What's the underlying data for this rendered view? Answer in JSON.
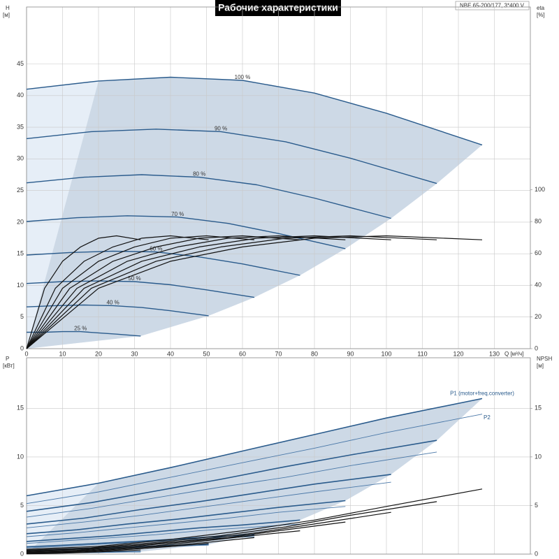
{
  "chart_data": [
    {
      "type": "line",
      "title": "Рабочие характеристики",
      "annotation": "NBE 65-200/177, 3*400 V",
      "ylabel": "H",
      "yunit": "[м]",
      "y2label": "eta",
      "y2unit": "[%]",
      "xlabel": "Q [м³/ч]",
      "xlim": [
        0,
        140
      ],
      "ylim": [
        0,
        54
      ],
      "y2lim": [
        0,
        215
      ],
      "xticks": [
        0,
        10,
        20,
        30,
        40,
        50,
        60,
        70,
        80,
        90,
        100,
        110,
        120,
        130
      ],
      "xtick_labels": true,
      "yticks": [
        0,
        5,
        10,
        15,
        20,
        25,
        30,
        35,
        40,
        45
      ],
      "y2ticks": [
        0,
        20,
        40,
        60,
        80,
        100
      ],
      "grid": true,
      "area_color": "#cdd9e6",
      "area_light_color": "#e6eef7",
      "series": [
        {
          "name": "100 %",
          "color": "#2a5b8c",
          "line_width": 1.4,
          "x": [
            0,
            20,
            40,
            60,
            80,
            100,
            126.6
          ],
          "values": [
            41,
            42.3,
            42.9,
            42.4,
            40.4,
            37.2,
            32.2
          ]
        },
        {
          "name": "90 %",
          "color": "#2a5b8c",
          "line_width": 1.4,
          "x": [
            0,
            18,
            36,
            54,
            72,
            90,
            114
          ],
          "values": [
            33.2,
            34.3,
            34.7,
            34.3,
            32.7,
            30.1,
            26.1
          ]
        },
        {
          "name": "80 %",
          "color": "#2a5b8c",
          "line_width": 1.4,
          "x": [
            0,
            16,
            32,
            48,
            64,
            80,
            101.3
          ],
          "values": [
            26.2,
            27.1,
            27.5,
            27.1,
            25.9,
            23.8,
            20.6
          ]
        },
        {
          "name": "70 %",
          "color": "#2a5b8c",
          "line_width": 1.4,
          "x": [
            0,
            14,
            28,
            42,
            56,
            70,
            88.6
          ],
          "values": [
            20.1,
            20.7,
            21.0,
            20.8,
            19.8,
            18.2,
            15.8
          ]
        },
        {
          "name": "60 %",
          "color": "#2a5b8c",
          "line_width": 1.4,
          "x": [
            0,
            12,
            24,
            36,
            48,
            60,
            76
          ],
          "values": [
            14.8,
            15.2,
            15.4,
            15.3,
            14.5,
            13.4,
            11.6
          ]
        },
        {
          "name": "50 %",
          "color": "#2a5b8c",
          "line_width": 1.4,
          "x": [
            0,
            10,
            20,
            30,
            40,
            50,
            63.3
          ],
          "values": [
            10.3,
            10.6,
            10.7,
            10.6,
            10.1,
            9.3,
            8.1
          ]
        },
        {
          "name": "40 %",
          "color": "#2a5b8c",
          "line_width": 1.4,
          "x": [
            0,
            8,
            16,
            24,
            32,
            40,
            50.6
          ],
          "values": [
            6.6,
            6.8,
            6.9,
            6.8,
            6.5,
            6.0,
            5.2
          ]
        },
        {
          "name": "25 %",
          "color": "#2a5b8c",
          "line_width": 1.4,
          "x": [
            0,
            5,
            10,
            15,
            20,
            25,
            31.7
          ],
          "values": [
            2.6,
            2.6,
            2.7,
            2.7,
            2.5,
            2.3,
            2.0
          ]
        },
        {
          "axis": "y2",
          "color": "#111111",
          "line_width": 1.2,
          "x": [
            0,
            20,
            40,
            60,
            80,
            100,
            126.6
          ],
          "values": [
            0,
            38,
            55,
            64,
            69.5,
            71,
            68.5
          ]
        },
        {
          "axis": "y2",
          "color": "#111111",
          "line_width": 1.2,
          "x": [
            0,
            18,
            36,
            54,
            72,
            90,
            114
          ],
          "values": [
            0,
            38,
            55,
            64,
            69.5,
            71,
            68.5
          ]
        },
        {
          "axis": "y2",
          "color": "#111111",
          "line_width": 1.2,
          "x": [
            0,
            16,
            32,
            48,
            64,
            80,
            101.3
          ],
          "values": [
            0,
            38,
            55,
            64,
            69.5,
            71,
            68.5
          ]
        },
        {
          "axis": "y2",
          "color": "#111111",
          "line_width": 1.2,
          "x": [
            0,
            14,
            28,
            42,
            56,
            70,
            88.6
          ],
          "values": [
            0,
            38,
            55,
            64,
            69.5,
            71,
            68.5
          ]
        },
        {
          "axis": "y2",
          "color": "#111111",
          "line_width": 1.2,
          "x": [
            0,
            12,
            24,
            36,
            48,
            60,
            76
          ],
          "values": [
            0,
            38,
            55,
            64,
            69.5,
            71,
            68.5
          ]
        },
        {
          "axis": "y2",
          "color": "#111111",
          "line_width": 1.2,
          "x": [
            0,
            10,
            20,
            30,
            40,
            50,
            63.3
          ],
          "values": [
            0,
            38,
            55,
            64,
            69.5,
            71,
            68.5
          ]
        },
        {
          "axis": "y2",
          "color": "#111111",
          "line_width": 1.2,
          "x": [
            0,
            8,
            16,
            24,
            32,
            40,
            50.6
          ],
          "values": [
            0,
            38,
            55,
            64,
            69.5,
            71,
            68.5
          ]
        },
        {
          "axis": "y2",
          "color": "#111111",
          "line_width": 1.2,
          "x": [
            0,
            5,
            10,
            15,
            20,
            25,
            31.7
          ],
          "values": [
            0,
            38,
            55,
            64,
            69.5,
            71,
            68.5
          ]
        }
      ]
    },
    {
      "type": "line",
      "ylabel": "P",
      "yunit": "[кВт]",
      "y2label": "NPSH",
      "y2unit": "[м]",
      "xlim": [
        0,
        140
      ],
      "ylim": [
        0,
        20.2
      ],
      "y2lim": [
        0,
        20.2
      ],
      "xticks": [
        0,
        10,
        20,
        30,
        40,
        50,
        60,
        70,
        80,
        90,
        100,
        110,
        120,
        130
      ],
      "xtick_labels": false,
      "yticks": [
        0,
        5,
        10,
        15
      ],
      "y2ticks": [
        0,
        5,
        10,
        15
      ],
      "grid": true,
      "area_color": "#cdd9e6",
      "area_light_color": "#e6eef7",
      "series": [
        {
          "name": "P1 (motor+freq.converter)",
          "color": "#2a5b8c",
          "line_width": 1.6,
          "x": [
            0,
            20,
            40,
            60,
            80,
            100,
            126.6
          ],
          "values": [
            6.0,
            7.3,
            8.9,
            10.6,
            12.3,
            14.0,
            16.0
          ]
        },
        {
          "color": "#2a5b8c",
          "line_width": 1.6,
          "x": [
            0,
            18,
            36,
            54,
            72,
            90,
            114
          ],
          "values": [
            4.4,
            5.3,
            6.5,
            7.7,
            9.0,
            10.2,
            11.7
          ]
        },
        {
          "color": "#2a5b8c",
          "line_width": 1.6,
          "x": [
            0,
            16,
            32,
            48,
            64,
            80,
            101.3
          ],
          "values": [
            3.1,
            3.7,
            4.6,
            5.4,
            6.3,
            7.2,
            8.2
          ]
        },
        {
          "color": "#2a5b8c",
          "line_width": 1.6,
          "x": [
            0,
            14,
            28,
            42,
            56,
            70,
            88.6
          ],
          "values": [
            2.1,
            2.5,
            3.1,
            3.6,
            4.2,
            4.8,
            5.5
          ]
        },
        {
          "color": "#2a5b8c",
          "line_width": 1.6,
          "x": [
            0,
            12,
            24,
            36,
            48,
            60,
            76
          ],
          "values": [
            1.3,
            1.6,
            1.9,
            2.3,
            2.7,
            3.0,
            3.5
          ]
        },
        {
          "color": "#2a5b8c",
          "line_width": 1.6,
          "x": [
            0,
            10,
            20,
            30,
            40,
            50,
            63.3
          ],
          "values": [
            0.75,
            0.91,
            1.1,
            1.3,
            1.5,
            1.75,
            2.0
          ]
        },
        {
          "color": "#2a5b8c",
          "line_width": 1.6,
          "x": [
            0,
            8,
            16,
            24,
            32,
            40,
            50.6
          ],
          "values": [
            0.38,
            0.47,
            0.57,
            0.68,
            0.79,
            0.9,
            1.0
          ]
        },
        {
          "color": "#2a5b8c",
          "line_width": 1.6,
          "x": [
            0,
            5,
            10,
            15,
            20,
            25,
            31.7
          ],
          "values": [
            0.09,
            0.11,
            0.14,
            0.17,
            0.19,
            0.22,
            0.25
          ]
        },
        {
          "name": "P2",
          "color": "#4a78a8",
          "line_width": 0.9,
          "x": [
            0,
            20,
            40,
            60,
            80,
            100,
            126.6
          ],
          "values": [
            5.2,
            6.4,
            7.9,
            9.4,
            10.9,
            12.5,
            14.4
          ]
        },
        {
          "color": "#4a78a8",
          "line_width": 0.9,
          "x": [
            0,
            18,
            36,
            54,
            72,
            90,
            114
          ],
          "values": [
            3.8,
            4.7,
            5.8,
            6.9,
            7.9,
            9.1,
            10.5
          ]
        },
        {
          "color": "#4a78a8",
          "line_width": 0.9,
          "x": [
            0,
            16,
            32,
            48,
            64,
            80,
            101.3
          ],
          "values": [
            2.7,
            3.3,
            4.0,
            4.8,
            5.6,
            6.4,
            7.4
          ]
        },
        {
          "color": "#4a78a8",
          "line_width": 0.9,
          "x": [
            0,
            14,
            28,
            42,
            56,
            70,
            88.6
          ],
          "values": [
            1.8,
            2.2,
            2.7,
            3.2,
            3.7,
            4.3,
            4.9
          ]
        },
        {
          "color": "#4a78a8",
          "line_width": 0.9,
          "x": [
            0,
            12,
            24,
            36,
            48,
            60,
            76
          ],
          "values": [
            1.1,
            1.4,
            1.7,
            2.0,
            2.4,
            2.7,
            3.1
          ]
        },
        {
          "color": "#4a78a8",
          "line_width": 0.9,
          "x": [
            0,
            10,
            20,
            30,
            40,
            50,
            63.3
          ],
          "values": [
            0.65,
            0.8,
            1.0,
            1.2,
            1.4,
            1.6,
            1.8
          ]
        },
        {
          "color": "#4a78a8",
          "line_width": 0.9,
          "x": [
            0,
            8,
            16,
            24,
            32,
            40,
            50.6
          ],
          "values": [
            0.33,
            0.41,
            0.51,
            0.6,
            0.7,
            0.8,
            0.92
          ]
        },
        {
          "color": "#4a78a8",
          "line_width": 0.9,
          "x": [
            0,
            5,
            10,
            15,
            20,
            25,
            31.7
          ],
          "values": [
            0.08,
            0.1,
            0.12,
            0.15,
            0.17,
            0.2,
            0.22
          ]
        },
        {
          "axis": "y2",
          "color": "#111111",
          "line_width": 1.2,
          "x": [
            0,
            20,
            40,
            60,
            80,
            100,
            126.6
          ],
          "values": [
            0.5,
            0.8,
            1.5,
            2.4,
            3.5,
            4.9,
            6.7
          ]
        },
        {
          "axis": "y2",
          "color": "#111111",
          "line_width": 1.2,
          "x": [
            0,
            18,
            36,
            54,
            72,
            90,
            114
          ],
          "values": [
            0.4,
            0.65,
            1.2,
            1.9,
            2.8,
            4.0,
            5.4
          ]
        },
        {
          "axis": "y2",
          "color": "#111111",
          "line_width": 1.2,
          "x": [
            0,
            16,
            32,
            48,
            64,
            80,
            101.3
          ],
          "values": [
            0.32,
            0.51,
            0.96,
            1.5,
            2.2,
            3.1,
            4.3
          ]
        },
        {
          "axis": "y2",
          "color": "#111111",
          "line_width": 1.2,
          "x": [
            0,
            14,
            28,
            42,
            56,
            70,
            88.6
          ],
          "values": [
            0.25,
            0.39,
            0.74,
            1.2,
            1.7,
            2.4,
            3.3
          ]
        },
        {
          "axis": "y2",
          "color": "#111111",
          "line_width": 1.2,
          "x": [
            0,
            12,
            24,
            36,
            48,
            60,
            76
          ],
          "values": [
            0.18,
            0.29,
            0.54,
            0.86,
            1.3,
            1.8,
            2.4
          ]
        },
        {
          "axis": "y2",
          "color": "#111111",
          "line_width": 1.2,
          "x": [
            0,
            10,
            20,
            30,
            40,
            50,
            63.3
          ],
          "values": [
            0.13,
            0.2,
            0.38,
            0.6,
            0.88,
            1.2,
            1.7
          ]
        },
        {
          "axis": "y2",
          "color": "#111111",
          "line_width": 1.2,
          "x": [
            0,
            8,
            16,
            24,
            32,
            40,
            50.6
          ],
          "values": [
            0.08,
            0.13,
            0.24,
            0.38,
            0.56,
            0.78,
            1.1
          ]
        },
        {
          "axis": "y2",
          "color": "#111111",
          "line_width": 1.2,
          "x": [
            0,
            5,
            10,
            15,
            20,
            25,
            31.7
          ],
          "values": [
            0.03,
            0.05,
            0.09,
            0.15,
            0.22,
            0.31,
            0.42
          ]
        }
      ]
    }
  ]
}
